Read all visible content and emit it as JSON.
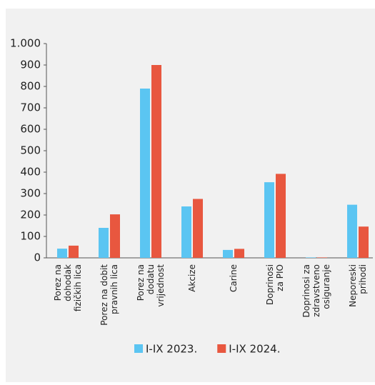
{
  "chart_data": {
    "type": "bar",
    "categories": [
      "Porez na\ndohodak\nfizičkih lica",
      "Porez na dobit\npravnih lica",
      "Porez na\ndodatu\nvrijednost",
      "Akcize",
      "Carine",
      "Doprinosi\nza PIO",
      "Doprinosi za\nzdravstveno\nosiguranje",
      "Neporeski\nprihodi"
    ],
    "series": [
      {
        "name": "I-IX 2023.",
        "color": "#5bc5f2",
        "values": [
          43,
          140,
          790,
          240,
          37,
          353,
          2,
          248
        ]
      },
      {
        "name": "I-IX 2024.",
        "color": "#e8573f",
        "values": [
          57,
          203,
          900,
          275,
          42,
          392,
          2,
          146
        ]
      }
    ],
    "ylim": [
      0,
      1000
    ],
    "yticks": [
      0,
      100,
      200,
      300,
      400,
      500,
      600,
      700,
      800,
      900,
      {
        "value": 1000,
        "label": "1.000"
      }
    ],
    "grid": false
  }
}
